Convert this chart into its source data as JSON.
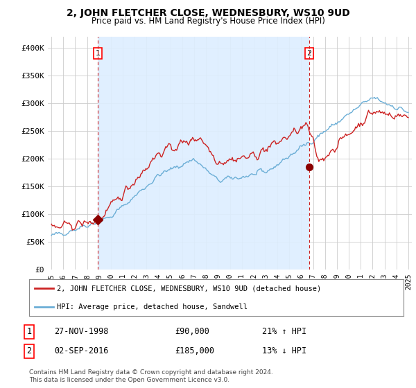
{
  "title": "2, JOHN FLETCHER CLOSE, WEDNESBURY, WS10 9UD",
  "subtitle": "Price paid vs. HM Land Registry's House Price Index (HPI)",
  "ylabel_ticks": [
    "£0",
    "£50K",
    "£100K",
    "£150K",
    "£200K",
    "£250K",
    "£300K",
    "£350K",
    "£400K"
  ],
  "ytick_values": [
    0,
    50000,
    100000,
    150000,
    200000,
    250000,
    300000,
    350000,
    400000
  ],
  "ylim": [
    0,
    420000
  ],
  "xlim_start": 1994.7,
  "xlim_end": 2025.3,
  "hpi_color": "#6baed6",
  "price_color": "#cc2222",
  "dot_color": "#8b0000",
  "shade_color": "#ddeeff",
  "marker1_x": 1998.9,
  "marker1_y": 90000,
  "marker2_x": 2016.67,
  "marker2_y": 185000,
  "label1_num": "1",
  "label2_num": "2",
  "legend_line1": "2, JOHN FLETCHER CLOSE, WEDNESBURY, WS10 9UD (detached house)",
  "legend_line2": "HPI: Average price, detached house, Sandwell",
  "table_row1_num": "1",
  "table_row1_date": "27-NOV-1998",
  "table_row1_price": "£90,000",
  "table_row1_hpi": "21% ↑ HPI",
  "table_row2_num": "2",
  "table_row2_date": "02-SEP-2016",
  "table_row2_price": "£185,000",
  "table_row2_hpi": "13% ↓ HPI",
  "footnote": "Contains HM Land Registry data © Crown copyright and database right 2024.\nThis data is licensed under the Open Government Licence v3.0.",
  "xtick_years": [
    1995,
    1996,
    1997,
    1998,
    1999,
    2000,
    2001,
    2002,
    2003,
    2004,
    2005,
    2006,
    2007,
    2008,
    2009,
    2010,
    2011,
    2012,
    2013,
    2014,
    2015,
    2016,
    2017,
    2018,
    2019,
    2020,
    2021,
    2022,
    2023,
    2024,
    2025
  ],
  "background_color": "#ffffff",
  "grid_color": "#cccccc"
}
